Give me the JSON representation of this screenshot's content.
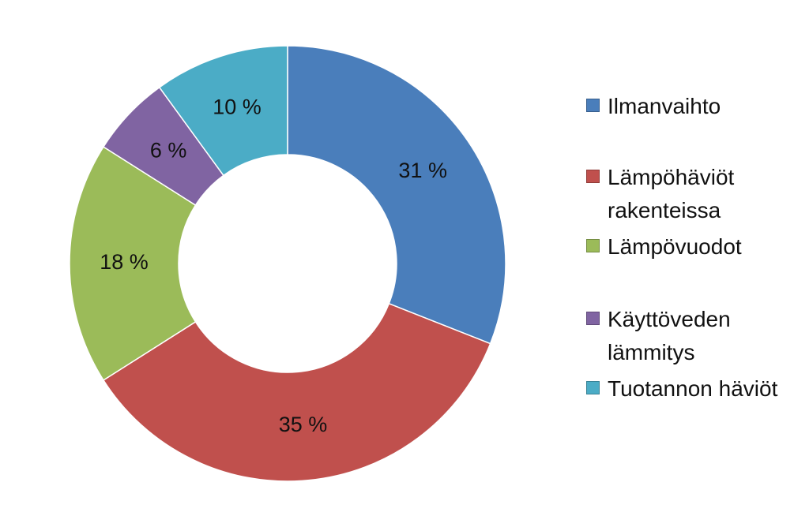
{
  "chart_data": {
    "type": "donut",
    "categories": [
      "Ilmanvaihto",
      "Lämpöhäviöt rakenteissa",
      "Lämpövuodot",
      "Käyttöveden lämmitys",
      "Tuotannon häviöt"
    ],
    "values": [
      31,
      35,
      18,
      6,
      10
    ],
    "value_labels": [
      "31 %",
      "35 %",
      "18 %",
      "6 %",
      "10 %"
    ],
    "colors": [
      "#4a7ebb",
      "#c0504d",
      "#9bbb59",
      "#8064a2",
      "#4bacc6"
    ],
    "legend": "right"
  }
}
